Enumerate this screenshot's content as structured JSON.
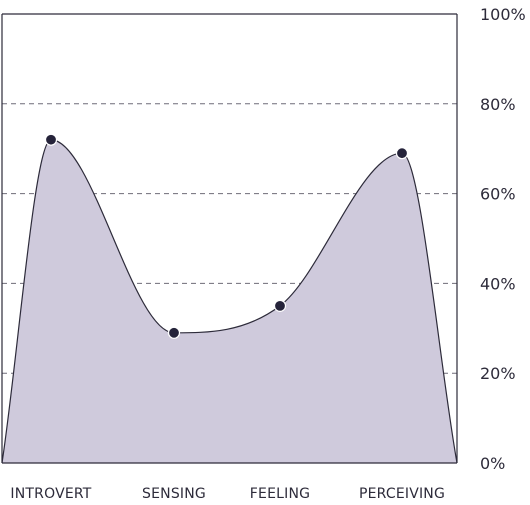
{
  "chart_data": {
    "type": "area",
    "title": "",
    "xlabel": "",
    "ylabel": "",
    "categories": [
      "INTROVERT",
      "SENSING",
      "FEELING",
      "PERCEIVING"
    ],
    "series": [
      {
        "values": [
          72,
          29,
          35,
          69
        ]
      }
    ],
    "ylim": [
      0,
      100
    ],
    "y_ticks": [
      0,
      20,
      40,
      60,
      80,
      100
    ],
    "y_tick_labels": [
      "0%",
      "20%",
      "40%",
      "60%",
      "80%",
      "100%"
    ],
    "y_axis_side": "right",
    "grid": true,
    "grid_style": "dashed",
    "legend": "none",
    "colors": {
      "fill": "#cfcadc",
      "line": "#2d2b3a",
      "point": "#25233a",
      "grid": "#6f6c78",
      "frame": "#2d2b3a"
    }
  }
}
